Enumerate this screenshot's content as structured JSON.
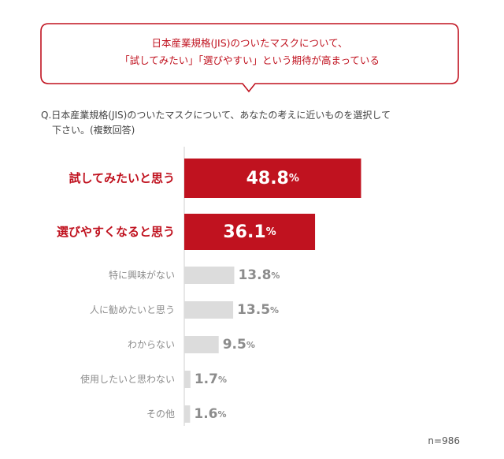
{
  "callout": {
    "line1": "日本産業規格(JIS)のついたマスクについて、",
    "line2": "「試してみたい」「選びやすい」という期待が高まっている"
  },
  "question": {
    "line1": "Q.日本産業規格(JIS)のついたマスクについて、あなたの考えに近いものを選択して",
    "line2": "下さい。(複数回答)"
  },
  "colors": {
    "highlight": "#c0121f",
    "muted": "#dcdcdc",
    "muted_text": "#8c8c8c"
  },
  "chart_data": {
    "type": "bar",
    "orientation": "horizontal",
    "categories": [
      "試してみたいと思う",
      "選びやすくなると思う",
      "特に興味がない",
      "人に勧めたいと思う",
      "わからない",
      "使用したいと思わない",
      "その他"
    ],
    "values": [
      48.8,
      36.1,
      13.8,
      13.5,
      9.5,
      1.7,
      1.6
    ],
    "highlighted": [
      true,
      true,
      false,
      false,
      false,
      false,
      false
    ],
    "unit": "%",
    "xlim": [
      0,
      100
    ]
  },
  "footnote": "n=986"
}
